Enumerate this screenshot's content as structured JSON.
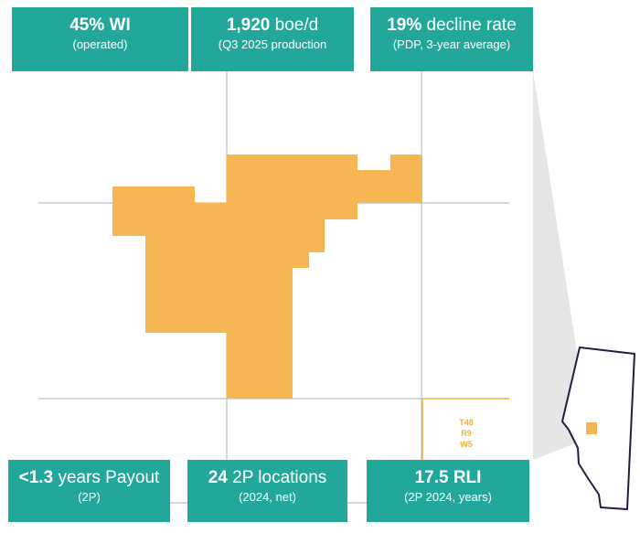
{
  "stats_top": [
    {
      "value": "45%",
      "unit": "WI",
      "sub": "(operated)"
    },
    {
      "value": "1,920",
      "unit": "boe/d",
      "sub": "(Q3 2025 production"
    },
    {
      "value": "19%",
      "unit": "decline rate",
      "sub": "(PDP, 3-year average)"
    }
  ],
  "stats_bottom": [
    {
      "value": "<1.3",
      "unit": "years Payout",
      "sub": "(2P)"
    },
    {
      "value": "24",
      "unit": "2P locations",
      "sub": "(2024, net)"
    },
    {
      "value": "17.5",
      "unit": "RLI",
      "sub": "(2P 2024, years)"
    }
  ],
  "township_label": {
    "township": "T48",
    "range": "R9",
    "meridian": "W5"
  },
  "colors": {
    "teal": "#22a89a",
    "land": "#f6b653",
    "grid": "#bfbfbf",
    "callout": "#e6e6e6",
    "province_outline": "#2a1a40"
  },
  "icons": {
    "inset": "alberta-province-outline-icon"
  }
}
